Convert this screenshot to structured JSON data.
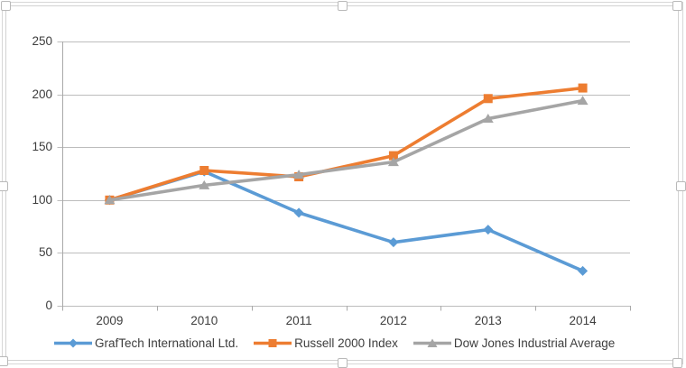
{
  "window": {
    "background": "#ffffff",
    "selection": {
      "handle_fill": "#ffffff",
      "handle_border": "#b9b9b9",
      "frame_color": "#d7d7d7"
    }
  },
  "chart_data": {
    "type": "line",
    "title": "",
    "x_labels": [
      "2009",
      "2010",
      "2011",
      "2012",
      "2013",
      "2014"
    ],
    "series": [
      {
        "name": "GrafTech International Ltd.",
        "color": "#5B9BD5",
        "marker": "diamond",
        "values": [
          100,
          127,
          88,
          60,
          72,
          33
        ]
      },
      {
        "name": "Russell 2000 Index",
        "color": "#ED7D31",
        "marker": "square",
        "values": [
          100,
          128,
          122,
          142,
          196,
          206
        ]
      },
      {
        "name": "Dow Jones Industrial Average",
        "color": "#A5A5A5",
        "marker": "triangle",
        "values": [
          100,
          114,
          124,
          136,
          177,
          194
        ]
      }
    ],
    "ylim": [
      0,
      250
    ],
    "yticks": [
      0,
      50,
      100,
      150,
      200,
      250
    ],
    "grid": true,
    "legend_position": "bottom",
    "gridline_color": "#bdbdbd",
    "axis_color": "#a9a9a9",
    "label_color": "#3d3d3d"
  }
}
